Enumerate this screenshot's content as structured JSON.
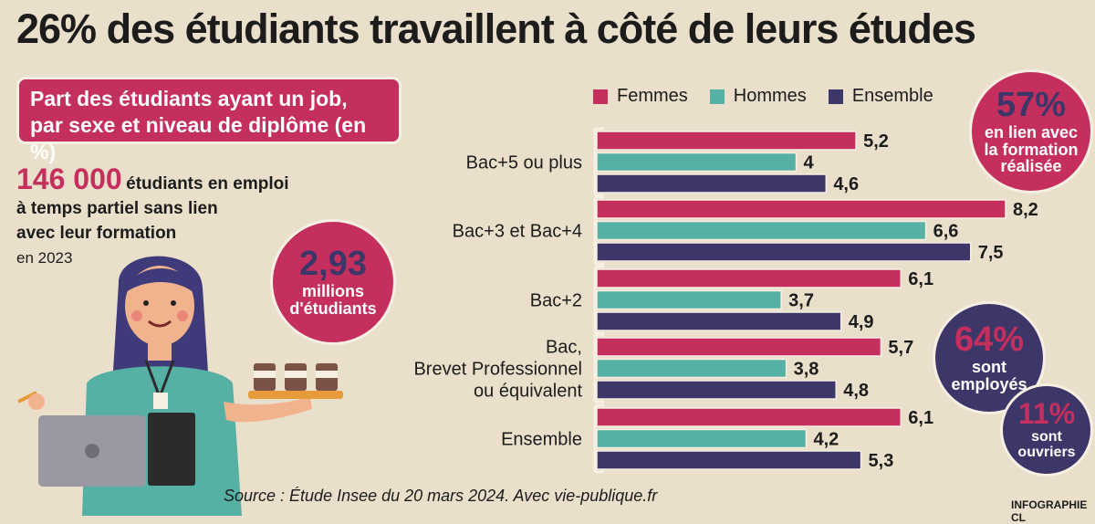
{
  "title": "26% des étudiants travaillent à côté de leurs études",
  "subtitle_line1": "Part des étudiants ayant un job,",
  "subtitle_line2": "par sexe et niveau de diplôme (en %)",
  "stat_students": {
    "big": "146 000",
    "line1": "étudiants en emploi",
    "line2": "à temps partiel sans lien",
    "line3": "avec leur formation",
    "year": "en 2023"
  },
  "circle_total": {
    "num": "2,93",
    "line1": "millions",
    "line2": "d'étudiants"
  },
  "circle_57": {
    "num": "57%",
    "line1": "en lien avec",
    "line2": "la formation",
    "line3": "réalisée"
  },
  "circle_64": {
    "num": "64%",
    "line1": "sont",
    "line2": "employés"
  },
  "circle_11": {
    "num": "11%",
    "line1": "sont",
    "line2": "ouvriers"
  },
  "source": "Source : Étude Insee du 20 mars 2024. Avec vie-publique.fr",
  "credit": "INFOGRAPHIE CL",
  "colors": {
    "femmes": "#c42f5e",
    "hommes": "#56b1a4",
    "ensemble": "#3d3669"
  },
  "chart_data": {
    "type": "bar",
    "orientation": "horizontal",
    "title": "Part des étudiants ayant un job, par sexe et niveau de diplôme (en %)",
    "categories": [
      [
        "Bac+5 ou plus"
      ],
      [
        "Bac+3 et Bac+4"
      ],
      [
        "Bac+2"
      ],
      [
        "Bac,",
        "Brevet Professionnel",
        "ou équivalent"
      ],
      [
        "Ensemble"
      ]
    ],
    "series": [
      {
        "name": "Femmes",
        "color": "#c42f5e",
        "values": [
          5.2,
          8.2,
          6.1,
          5.7,
          6.1
        ],
        "labels": [
          "5,2",
          "8,2",
          "6,1",
          "5,7",
          "6,1"
        ]
      },
      {
        "name": "Hommes",
        "color": "#56b1a4",
        "values": [
          4,
          6.6,
          3.7,
          3.8,
          4.2
        ],
        "labels": [
          "4",
          "6,6",
          "3,7",
          "3,8",
          "4,2"
        ]
      },
      {
        "name": "Ensemble",
        "color": "#3d3669",
        "values": [
          4.6,
          7.5,
          4.9,
          4.8,
          5.3
        ],
        "labels": [
          "4,6",
          "7,5",
          "4,9",
          "4,8",
          "5,3"
        ]
      }
    ],
    "xlim": [
      0,
      8.2
    ],
    "grid": false,
    "legend": "top"
  }
}
